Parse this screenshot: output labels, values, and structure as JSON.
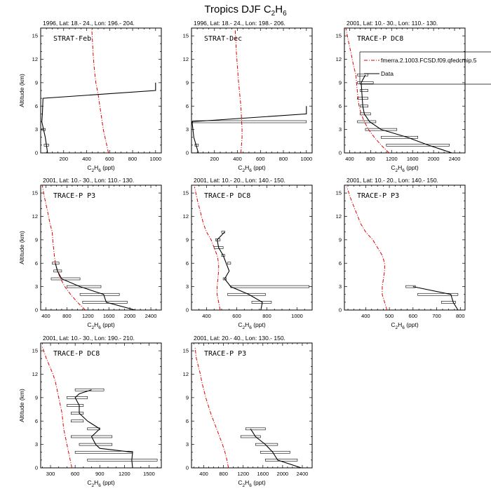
{
  "title": {
    "main": "Tropics DJF C",
    "sub": "2",
    "main_tail": "H",
    "sub2": "6"
  },
  "colors": {
    "model": "#e00000",
    "data": "#000000"
  },
  "chart_data": [
    {
      "type": "line",
      "subtitle": "1996, Lat: 18.- 24., Lon: 196.- 204.",
      "campaign": "STRAT-Feb",
      "xlim": [
        0,
        1050
      ],
      "xticks": [
        200,
        400,
        600,
        800,
        1000
      ],
      "minor_x": 50,
      "ylim": [
        0,
        16
      ],
      "yticks": [
        0,
        3,
        6,
        9,
        12,
        15
      ],
      "ylabel": "Altitude (km)",
      "xlabel": {
        "pre": "C",
        "sub1": "2",
        "mid": "H",
        "sub2": "6",
        "post": " (ppt)"
      },
      "model": {
        "x": [
          590,
          575,
          560,
          545,
          530,
          515,
          500,
          480,
          465,
          455,
          450,
          445
        ],
        "y": [
          0,
          1,
          2,
          3,
          4.5,
          6,
          7.5,
          9,
          11,
          13,
          14.5,
          15.8
        ]
      },
      "data": {
        "x": [
          60,
          50,
          40,
          25,
          10,
          15,
          20,
          1000,
          1000
        ],
        "y": [
          0,
          1,
          2,
          3,
          4,
          5,
          7,
          8,
          9
        ]
      },
      "errorbars": [
        {
          "y": 1,
          "xmin": 30,
          "xmax": 70
        },
        {
          "y": 3,
          "xmin": 10,
          "xmax": 40
        }
      ]
    },
    {
      "type": "line",
      "subtitle": "1996, Lat: 18.- 24., Lon: 198.- 206.",
      "campaign": "STRAT-Dec",
      "xlim": [
        0,
        1050
      ],
      "xticks": [
        200,
        400,
        600,
        800,
        1000
      ],
      "minor_x": 50,
      "ylim": [
        0,
        16
      ],
      "yticks": [
        0,
        3,
        6,
        9,
        12,
        15
      ],
      "xlabel": {
        "pre": "C",
        "sub1": "2",
        "mid": "H",
        "sub2": "6",
        "post": " (ppt)"
      },
      "model": {
        "x": [
          430,
          435,
          440,
          440,
          435,
          430,
          420,
          410,
          400,
          390,
          385,
          380
        ],
        "y": [
          0,
          1,
          2,
          3,
          4.5,
          6,
          7.5,
          9,
          11,
          13,
          14.5,
          15.8
        ]
      },
      "data": {
        "x": [
          60,
          40,
          20,
          5,
          1000,
          1000
        ],
        "y": [
          0,
          1,
          2,
          4,
          5,
          6
        ]
      },
      "errorbars": [
        {
          "y": 1,
          "xmin": 30,
          "xmax": 60
        },
        {
          "y": 4,
          "xmin": 10,
          "xmax": 1000
        }
      ]
    },
    {
      "type": "line",
      "subtitle": "2001, Lat: 10.- 30., Lon: 110.- 130.",
      "campaign": "TRACE-P DC8",
      "xlim": [
        300,
        2600
      ],
      "xticks": [
        400,
        800,
        1200,
        1600,
        2000,
        2400
      ],
      "minor_x": 100,
      "ylim": [
        0,
        16
      ],
      "yticks": [
        0,
        3,
        6,
        9,
        12,
        15
      ],
      "xlabel": {
        "pre": "C",
        "sub1": "2",
        "mid": "H",
        "sub2": "6",
        "post": " (ppt)"
      },
      "model": {
        "x": [
          1150,
          1000,
          870,
          760,
          680,
          620,
          580,
          560,
          545,
          530,
          520,
          480,
          420,
          370,
          330
        ],
        "y": [
          0,
          1,
          2,
          3,
          4,
          5,
          6,
          7,
          8,
          9,
          10,
          11,
          13,
          14.5,
          16
        ]
      },
      "data": {
        "x": [
          2350,
          1900,
          1500,
          1000,
          780,
          680,
          650,
          640,
          630,
          620,
          700
        ],
        "y": [
          0,
          1,
          2,
          3,
          4,
          5,
          6,
          7,
          8,
          9,
          10
        ]
      },
      "errorbars": [
        {
          "y": 1,
          "xmin": 1100,
          "xmax": 2300
        },
        {
          "y": 2,
          "xmin": 1000,
          "xmax": 1700
        },
        {
          "y": 3,
          "xmin": 700,
          "xmax": 1300
        },
        {
          "y": 4,
          "xmin": 550,
          "xmax": 900
        },
        {
          "y": 5,
          "xmin": 600,
          "xmax": 800
        },
        {
          "y": 6,
          "xmin": 600,
          "xmax": 750
        },
        {
          "y": 7,
          "xmin": 550,
          "xmax": 750
        },
        {
          "y": 8,
          "xmin": 600,
          "xmax": 750
        },
        {
          "y": 9,
          "xmin": 550,
          "xmax": 850
        },
        {
          "y": 10,
          "xmin": 550,
          "xmax": 750
        }
      ],
      "legend": {
        "model_label": "fmerra.2.1003.FCSD.f09.qfedcmip.5",
        "data_label": "Data"
      }
    },
    {
      "type": "line",
      "subtitle": "2001, Lat: 10.- 30., Lon: 110.- 130.",
      "campaign": "TRACE-P P3",
      "xlim": [
        300,
        2600
      ],
      "xticks": [
        400,
        800,
        1200,
        1600,
        2000,
        2400
      ],
      "minor_x": 100,
      "ylim": [
        0,
        16
      ],
      "yticks": [
        0,
        3,
        6,
        9,
        12,
        15
      ],
      "ylabel": "Altitude (km)",
      "xlabel": {
        "pre": "C",
        "sub1": "2",
        "mid": "H",
        "sub2": "6",
        "post": " (ppt)"
      },
      "model": {
        "x": [
          1150,
          1000,
          870,
          760,
          680,
          620,
          580,
          560,
          545,
          530,
          520,
          480,
          420,
          370,
          330
        ],
        "y": [
          0,
          1,
          2,
          3,
          4,
          5,
          6,
          7,
          8,
          9,
          10,
          11,
          13,
          14.5,
          16
        ]
      },
      "data": {
        "x": [
          2100,
          1550,
          1500,
          1050,
          700,
          620,
          580
        ],
        "y": [
          0,
          1,
          2,
          3,
          4,
          5,
          6
        ]
      },
      "errorbars": [
        {
          "y": 1,
          "xmin": 1100,
          "xmax": 1950
        },
        {
          "y": 2,
          "xmin": 1050,
          "xmax": 1800
        },
        {
          "y": 3,
          "xmin": 800,
          "xmax": 1450
        },
        {
          "y": 4,
          "xmin": 500,
          "xmax": 1050
        },
        {
          "y": 5,
          "xmin": 550,
          "xmax": 700
        },
        {
          "y": 6,
          "xmin": 520,
          "xmax": 650
        }
      ]
    },
    {
      "type": "line",
      "subtitle": "2001, Lat: 10.- 20., Lon: 140.- 150.",
      "campaign": "TRACE-P DC8",
      "xlim": [
        300,
        1100
      ],
      "xticks": [
        400,
        600,
        800,
        1000
      ],
      "minor_x": 50,
      "ylim": [
        0,
        16
      ],
      "yticks": [
        0,
        3,
        6,
        9,
        12,
        15
      ],
      "xlabel": {
        "pre": "C",
        "sub1": "2",
        "mid": "H",
        "sub2": "6",
        "post": " (ppt)"
      },
      "model": {
        "x": [
          490,
          480,
          470,
          470,
          475,
          480,
          480,
          470,
          450,
          430,
          400,
          380,
          360,
          340,
          320
        ],
        "y": [
          0,
          1,
          2,
          3,
          4,
          5,
          6,
          7,
          8,
          9,
          10,
          11,
          12.5,
          14,
          15.8
        ]
      },
      "data": {
        "x": [
          760,
          770,
          680,
          560,
          520,
          550,
          530,
          510,
          480,
          470,
          520
        ],
        "y": [
          0,
          1,
          2,
          3,
          4,
          5,
          6,
          7,
          8,
          9,
          10
        ]
      },
      "errorbars": [
        {
          "y": 1,
          "xmin": 700,
          "xmax": 830
        },
        {
          "y": 2,
          "xmin": 540,
          "xmax": 790
        },
        {
          "y": 3,
          "xmin": 560,
          "xmax": 1080
        },
        {
          "y": 4,
          "xmin": 510,
          "xmax": 530
        },
        {
          "y": 6,
          "xmin": 540,
          "xmax": 560
        },
        {
          "y": 7,
          "xmin": 500,
          "xmax": 520
        },
        {
          "y": 8,
          "xmin": 450,
          "xmax": 510
        },
        {
          "y": 9,
          "xmin": 460,
          "xmax": 490
        },
        {
          "y": 10,
          "xmin": 500,
          "xmax": 520
        }
      ]
    },
    {
      "type": "line",
      "subtitle": "2001, Lat: 10.- 20., Lon: 140.- 150.",
      "campaign": "TRACE-P P3",
      "xlim": [
        310,
        820
      ],
      "xticks": [
        400,
        500,
        600,
        700,
        800
      ],
      "minor_x": 25,
      "ylim": [
        0,
        16
      ],
      "yticks": [
        0,
        3,
        6,
        9,
        12,
        15
      ],
      "xlabel": {
        "pre": "C",
        "sub1": "2",
        "mid": "H",
        "sub2": "6",
        "post": " (ppt)"
      },
      "model": {
        "x": [
          490,
          480,
          470,
          470,
          475,
          480,
          480,
          470,
          450,
          430,
          400,
          380,
          360,
          340,
          320
        ],
        "y": [
          0,
          1,
          2,
          3,
          4,
          5,
          6,
          7,
          8,
          9,
          10,
          11,
          12.5,
          14,
          15.8
        ]
      },
      "data": {
        "x": [
          790,
          770,
          760,
          600
        ],
        "y": [
          0,
          1,
          2,
          3
        ]
      },
      "errorbars": [
        {
          "y": 1,
          "xmin": 720,
          "xmax": 780
        },
        {
          "y": 2,
          "xmin": 620,
          "xmax": 790
        },
        {
          "y": 3,
          "xmin": 570,
          "xmax": 610
        }
      ]
    },
    {
      "type": "line",
      "subtitle": "2001, Lat: 10.- 30., Lon: 190.- 210.",
      "campaign": "TRACE-P DC8",
      "xlim": [
        180,
        1650
      ],
      "xticks": [
        300,
        600,
        900,
        1200,
        1500
      ],
      "minor_x": 100,
      "ylim": [
        0,
        16
      ],
      "yticks": [
        0,
        3,
        6,
        9,
        12,
        15
      ],
      "ylabel": "Altitude (km)",
      "xlabel": {
        "pre": "C",
        "sub1": "2",
        "mid": "H",
        "sub2": "6",
        "post": " (ppt)"
      },
      "model": {
        "x": [
          560,
          540,
          520,
          500,
          480,
          460,
          450,
          440,
          420,
          400,
          380,
          360,
          330,
          290,
          250,
          200
        ],
        "y": [
          0,
          1,
          2,
          3,
          4,
          5,
          6,
          7,
          8,
          9,
          10,
          11,
          12,
          13,
          14,
          15.5
        ]
      },
      "data": {
        "x": [
          1300,
          1290,
          1300,
          900,
          850,
          800,
          900,
          750,
          650,
          650,
          600,
          650,
          800
        ],
        "y": [
          0,
          1,
          2,
          2.5,
          3,
          4,
          5,
          6,
          7,
          8,
          9,
          9.5,
          10
        ]
      },
      "errorbars": [
        {
          "y": 1,
          "xmin": 750,
          "xmax": 1600
        },
        {
          "y": 2,
          "xmin": 600,
          "xmax": 1300
        },
        {
          "y": 3,
          "xmin": 650,
          "xmax": 1050
        },
        {
          "y": 4,
          "xmin": 550,
          "xmax": 1050
        },
        {
          "y": 5,
          "xmin": 750,
          "xmax": 900
        },
        {
          "y": 6,
          "xmin": 550,
          "xmax": 700
        },
        {
          "y": 7,
          "xmin": 550,
          "xmax": 700
        },
        {
          "y": 8,
          "xmin": 500,
          "xmax": 700
        },
        {
          "y": 9,
          "xmin": 500,
          "xmax": 750
        },
        {
          "y": 10,
          "xmin": 600,
          "xmax": 950
        }
      ]
    },
    {
      "type": "line",
      "subtitle": "2001, Lat: 20.- 40., Lon: 130.- 150.",
      "campaign": "TRACE-P P3",
      "xlim": [
        150,
        2600
      ],
      "xticks": [
        400,
        800,
        1200,
        1600,
        2000,
        2400
      ],
      "minor_x": 100,
      "ylim": [
        0,
        16
      ],
      "yticks": [
        0,
        3,
        6,
        9,
        12,
        15
      ],
      "xlabel": {
        "pre": "C",
        "sub1": "2",
        "mid": "H",
        "sub2": "6",
        "post": " (ppt)"
      },
      "model": {
        "x": [
          900,
          870,
          830,
          780,
          720,
          660,
          600,
          540,
          490,
          440,
          400,
          360,
          330,
          290,
          250,
          220
        ],
        "y": [
          0,
          1,
          2,
          3,
          4,
          5,
          6,
          7,
          8,
          9,
          10,
          11,
          12,
          13,
          14,
          15.5
        ]
      },
      "data": {
        "x": [
          2380,
          1900,
          1800,
          1650,
          1450,
          1400,
          1350
        ],
        "y": [
          0,
          1,
          2,
          3,
          4,
          4.5,
          5
        ]
      },
      "errorbars": [
        {
          "y": 1,
          "xmin": 1650,
          "xmax": 2300
        },
        {
          "y": 2,
          "xmin": 1550,
          "xmax": 2150
        },
        {
          "y": 3,
          "xmin": 1450,
          "xmax": 1900
        },
        {
          "y": 4,
          "xmin": 1150,
          "xmax": 1550
        },
        {
          "y": 5,
          "xmin": 1250,
          "xmax": 1650
        }
      ]
    }
  ]
}
